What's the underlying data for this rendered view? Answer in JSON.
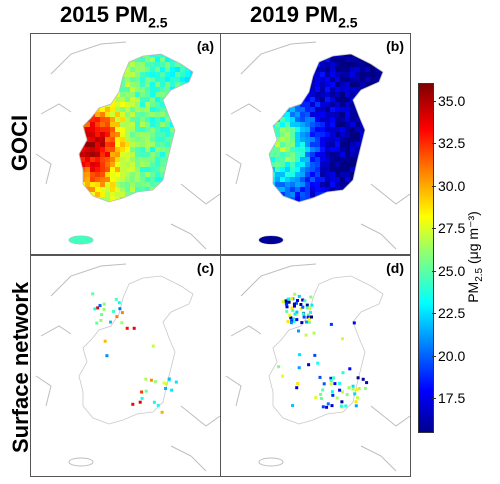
{
  "columns": [
    {
      "title": "2015 PM",
      "subscript": "2.5"
    },
    {
      "title": "2019 PM",
      "subscript": "2.5"
    }
  ],
  "rows": [
    {
      "title": "GOCI"
    },
    {
      "title": "Surface network"
    }
  ],
  "panels": [
    {
      "label": "(a)",
      "mode": "field",
      "mean": 28.5
    },
    {
      "label": "(b)",
      "mode": "field",
      "mean": 20.0
    },
    {
      "label": "(c)",
      "mode": "stations",
      "mean": 27.0
    },
    {
      "label": "(d)",
      "mode": "stations",
      "mean": 22.0
    }
  ],
  "colorbar": {
    "label_prefix": "PM",
    "label_sub": "2.5",
    "label_unit": "(μg m⁻³)",
    "min": 15.5,
    "max": 36.0,
    "ticks": [
      "17.5",
      "20.0",
      "22.5",
      "25.0",
      "27.5",
      "30.0",
      "32.5",
      "35.0"
    ],
    "colormap": "jet"
  },
  "colors": {
    "coast": "#bdbdbd",
    "frame": "#555555"
  }
}
